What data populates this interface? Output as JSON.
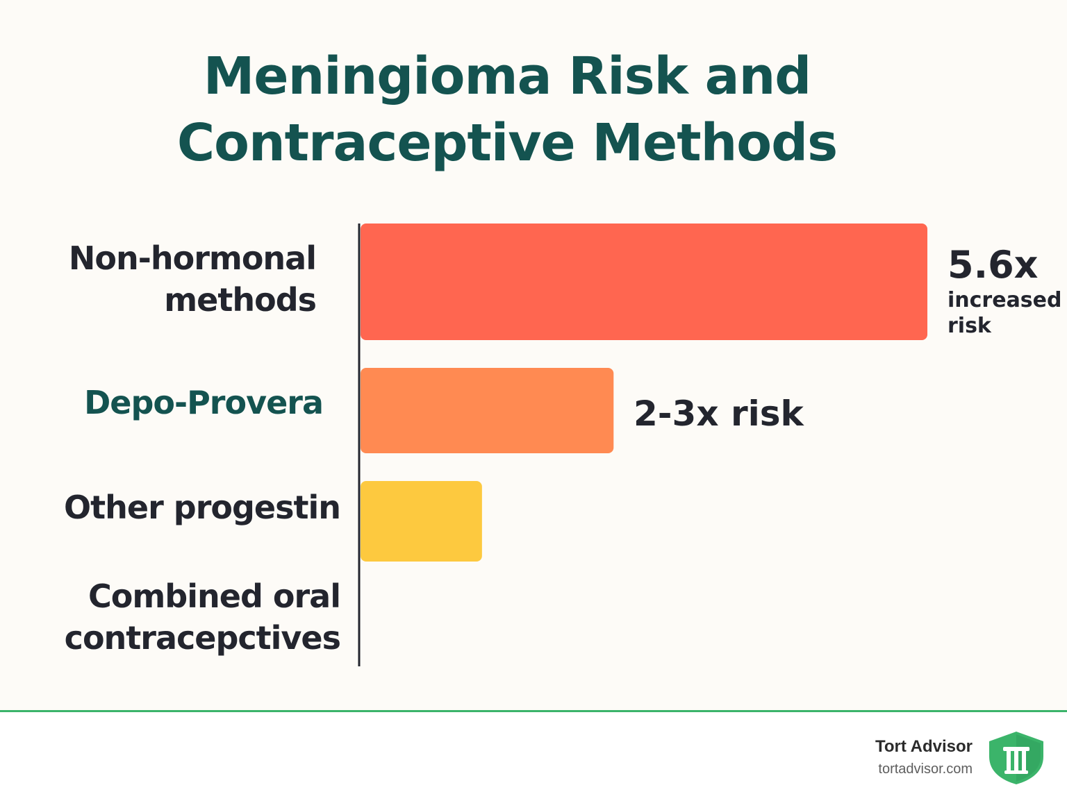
{
  "title_line1": "Meningioma Risk and",
  "title_line2": "Contraceptive Methods",
  "chart_data": {
    "type": "bar",
    "orientation": "horizontal",
    "categories": [
      "Non-hormonal methods",
      "Depo-Provera",
      "Other progestin",
      "Combined oral contracepctives"
    ],
    "values": [
      5.6,
      2.5,
      1.2,
      0
    ],
    "value_labels": [
      "5.6x",
      "2-3x risk",
      "",
      ""
    ],
    "value_sublabel": "increased risk",
    "colors": [
      "#ff6650",
      "#ff8a52",
      "#fdc93f",
      "#fdc93f"
    ],
    "accent_category": "Depo-Provera",
    "xlim": [
      0,
      5.6
    ],
    "grid": false,
    "legend": "none"
  },
  "labels": {
    "cat0_line1": "Non-hormonal",
    "cat0_line2": "methods",
    "cat1": "Depo-Provera",
    "cat2": "Other progestin",
    "cat3_line1": "Combined oral",
    "cat3_line2": "contracepctives",
    "val0_main": "5.6x",
    "val0_sub1": "increased",
    "val0_sub2": "risk",
    "val1": "2-3x risk"
  },
  "footer": {
    "brand_name": "Tort Advisor",
    "brand_url": "tortadvisor.com",
    "accent_color": "#3bb46a",
    "logo_icon": "shield-column-icon"
  }
}
